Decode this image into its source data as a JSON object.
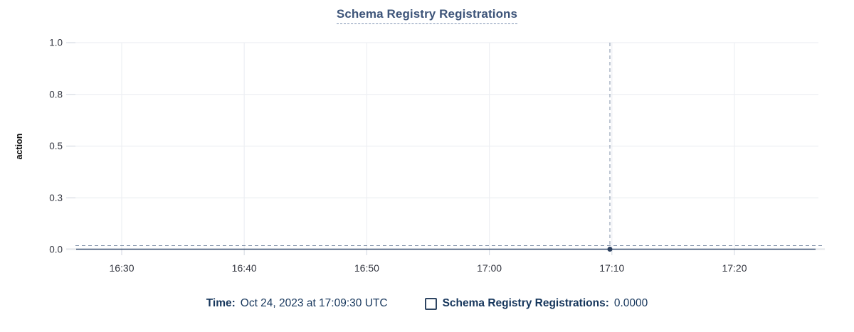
{
  "chart_data": {
    "type": "line",
    "title": "Schema Registry Registrations",
    "xlabel": "",
    "ylabel": "action",
    "x_tick_labels": [
      "16:30",
      "16:40",
      "16:50",
      "17:00",
      "17:10",
      "17:20"
    ],
    "y_ticks": [
      {
        "label": "0.0",
        "f": 0
      },
      {
        "label": "0.3",
        "f": 0.25
      },
      {
        "label": "0.5",
        "f": 0.5
      },
      {
        "label": "0.8",
        "f": 0.75
      },
      {
        "label": "1.0",
        "f": 1
      }
    ],
    "ylim": [
      0,
      1
    ],
    "grid": true,
    "legend_position": "bottom",
    "series": [
      {
        "name": "Schema Registry Registrations",
        "constant_value": 0,
        "color": "#31486b"
      }
    ],
    "hover_point": {
      "time": "17:09:30",
      "value": 0,
      "x_fraction": 0.722,
      "y_value": 0
    }
  },
  "tooltip": {
    "time_label": "Time:",
    "time_value": "Oct 24, 2023 at 17:09:30 UTC",
    "series_label": "Schema Registry Registrations:",
    "series_value": "0.0000"
  },
  "colors": {
    "title": "#3d5479",
    "title_underline": "#7e92b1",
    "line": "#31486b",
    "line_end_segment": "#e9ebee",
    "point": "#2c405e",
    "crosshair": "#7f90a8",
    "gridline": "#edeff3",
    "axis_tick_mark": "#d8dde5",
    "tick_text": "#343741",
    "axis_title_text": "#0a0a0a",
    "legend_text": "#16365c"
  }
}
